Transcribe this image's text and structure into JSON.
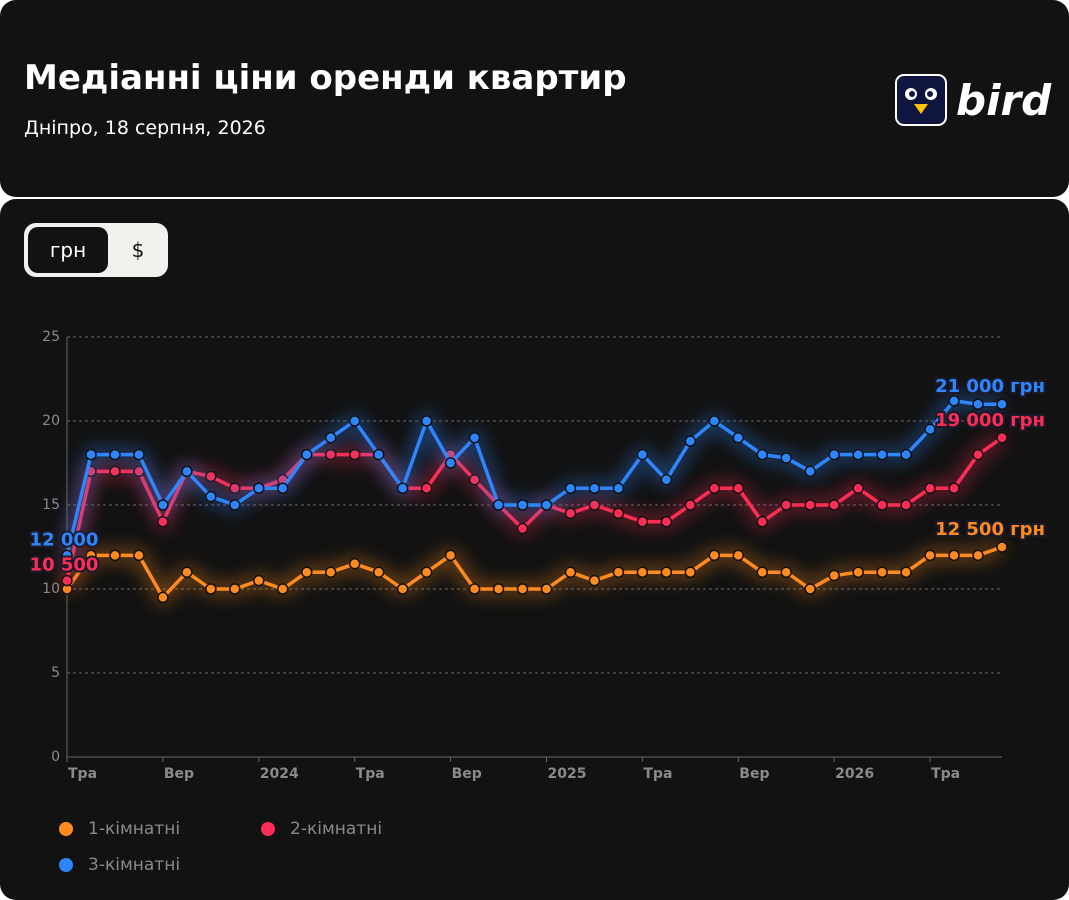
{
  "header": {
    "title": "Медіанні ціни оренди квартир",
    "subtitle": "Дніпро, 18 серпня, 2026",
    "logo": "bird"
  },
  "currency_toggle": [
    "грн",
    "$"
  ],
  "chart_data": {
    "type": "line",
    "categories": [
      "Тра",
      null,
      null,
      null,
      "Вер",
      null,
      null,
      null,
      "2024",
      null,
      null,
      null,
      "Тра",
      null,
      null,
      null,
      "Вер",
      null,
      null,
      null,
      "2025",
      null,
      null,
      null,
      "Тра",
      null,
      null,
      null,
      "Вер",
      null,
      null,
      null,
      "2026",
      null,
      null,
      null,
      "Тра",
      null,
      null,
      null
    ],
    "ylim": [
      0,
      25
    ],
    "yticks": [
      0,
      5,
      10,
      15,
      20,
      25
    ],
    "grid": true,
    "series": [
      {
        "name": "1-кімнатні",
        "color": "#ff8a1f",
        "values": [
          10,
          12,
          12,
          12,
          9.5,
          11,
          10,
          10,
          10.5,
          10,
          11,
          11,
          11.5,
          11,
          10,
          11,
          12,
          10,
          10,
          10,
          10,
          11,
          10.5,
          11,
          11,
          11,
          11,
          12,
          12,
          11,
          11,
          10,
          10.8,
          11,
          11,
          11,
          12,
          12,
          12,
          12.5
        ],
        "value_labels": [
          null,
          null,
          null,
          null,
          null,
          null,
          null,
          null,
          null,
          null,
          null,
          null,
          null,
          null,
          null,
          null,
          null,
          null,
          null,
          null,
          null,
          null,
          null,
          null,
          null,
          null,
          null,
          null,
          null,
          null,
          null,
          null,
          null,
          null,
          null,
          null,
          null,
          null,
          null,
          "12 500 грн"
        ]
      },
      {
        "name": "2-кімнатні",
        "color": "#ff2d55",
        "values": [
          10.5,
          17,
          17,
          17,
          14,
          17,
          16.7,
          16,
          16,
          16.5,
          18,
          18,
          18,
          18,
          16,
          16,
          18,
          16.5,
          15,
          13.6,
          15,
          14.5,
          15,
          14.5,
          14,
          14,
          15,
          16,
          16,
          14,
          15,
          15,
          15,
          16,
          15,
          15,
          16,
          16,
          18,
          19
        ],
        "value_labels": [
          "10 500",
          null,
          null,
          null,
          null,
          null,
          null,
          null,
          null,
          null,
          null,
          null,
          null,
          null,
          null,
          null,
          null,
          null,
          null,
          null,
          null,
          null,
          null,
          null,
          null,
          null,
          null,
          null,
          null,
          null,
          null,
          null,
          null,
          null,
          null,
          null,
          null,
          null,
          null,
          "19 000 грн"
        ]
      },
      {
        "name": "3-кімнатні",
        "color": "#2e86ff",
        "values": [
          12,
          18,
          18,
          18,
          15,
          17,
          15.5,
          15,
          16,
          16,
          18,
          19,
          20,
          18,
          16,
          20,
          17.5,
          19,
          15,
          15,
          15,
          16,
          16,
          16,
          18,
          16.5,
          18.8,
          20,
          19,
          18,
          17.8,
          17,
          18,
          18,
          18,
          18,
          19.5,
          21.2,
          21,
          21
        ],
        "value_labels": [
          "12 000",
          null,
          null,
          null,
          null,
          null,
          null,
          null,
          null,
          null,
          null,
          null,
          null,
          null,
          null,
          null,
          null,
          null,
          null,
          null,
          null,
          null,
          null,
          null,
          null,
          null,
          null,
          null,
          null,
          null,
          null,
          null,
          null,
          null,
          null,
          null,
          null,
          null,
          null,
          "21 000 грн"
        ]
      }
    ]
  }
}
